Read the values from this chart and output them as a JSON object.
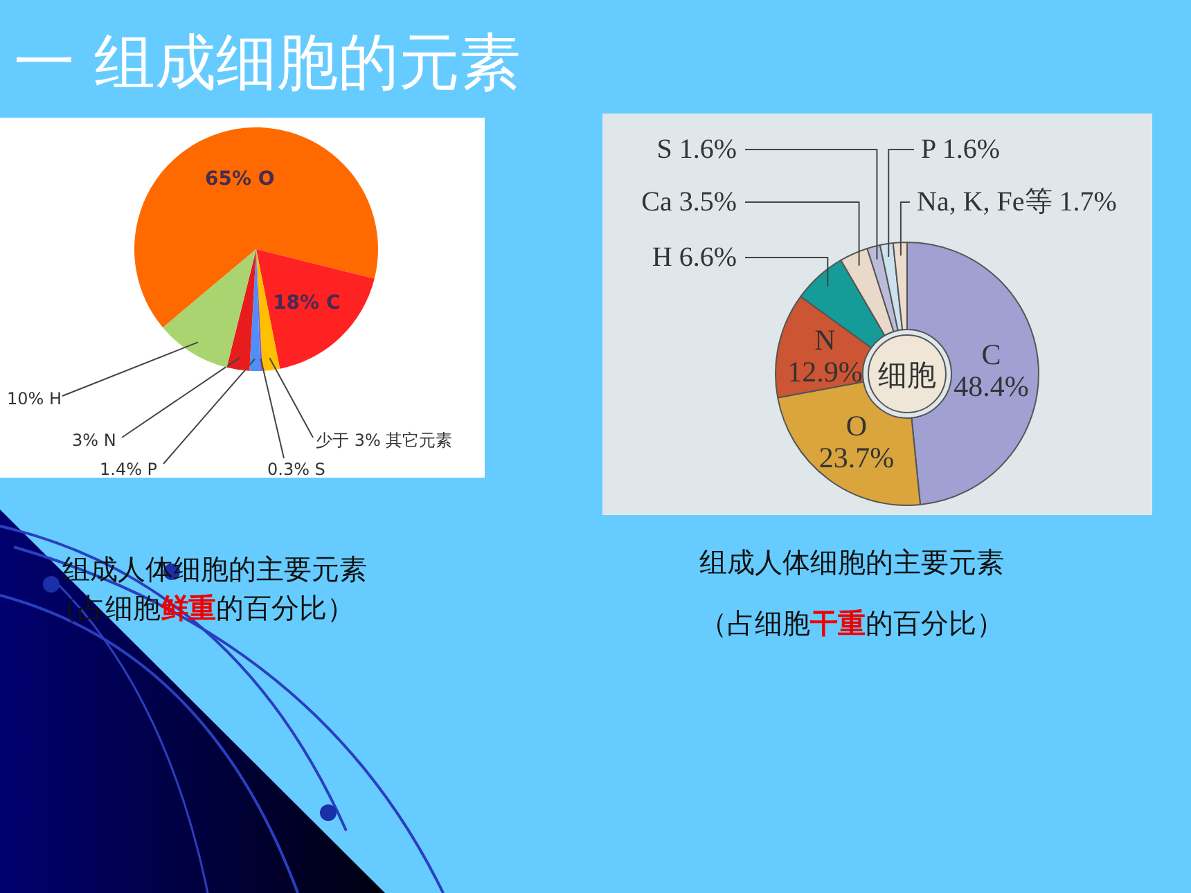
{
  "chart_data": [
    {
      "type": "pie",
      "title": "组成人体细胞的主要元素",
      "subtitle": "（占细胞**鲜重**的百分比）",
      "categories": [
        "O",
        "C",
        "其它元素",
        "S",
        "P",
        "N",
        "H"
      ],
      "values": [
        65,
        18,
        2.3,
        0.3,
        1.4,
        3,
        10
      ],
      "colors": [
        "#ff6a00",
        "#ff2222",
        "#ffc000",
        "#8a5cc8",
        "#4f8ff7",
        "#e81c1c",
        "#a9d46f"
      ],
      "value_labels": [
        "65%",
        "18%",
        "少于 3%",
        "0.3%",
        "1.4%",
        "3%",
        "10%"
      ],
      "annotations": [
        "一 组成细胞的元素"
      ]
    },
    {
      "type": "donut",
      "title": "组成人体细胞的主要元素",
      "subtitle": "（占细胞**干重**的百分比）",
      "categories": [
        "C",
        "O",
        "N",
        "H",
        "Ca",
        "S",
        "P",
        "Na, K, Fe等"
      ],
      "values": [
        48.4,
        23.7,
        12.9,
        6.6,
        3.5,
        1.6,
        1.6,
        1.7
      ],
      "colors": [
        "#a0a0d2",
        "#d9a53c",
        "#cc5533",
        "#159c98",
        "#e8d9c9",
        "#bcbcd9",
        "#cce2ef",
        "#ecdccb"
      ],
      "value_labels": [
        "48.4%",
        "23.7%",
        "12.9%",
        "6.6%",
        "3.5%",
        "1.6%",
        "1.6%",
        "1.7%"
      ],
      "annotations": [
        "细胞"
      ]
    }
  ]
}
